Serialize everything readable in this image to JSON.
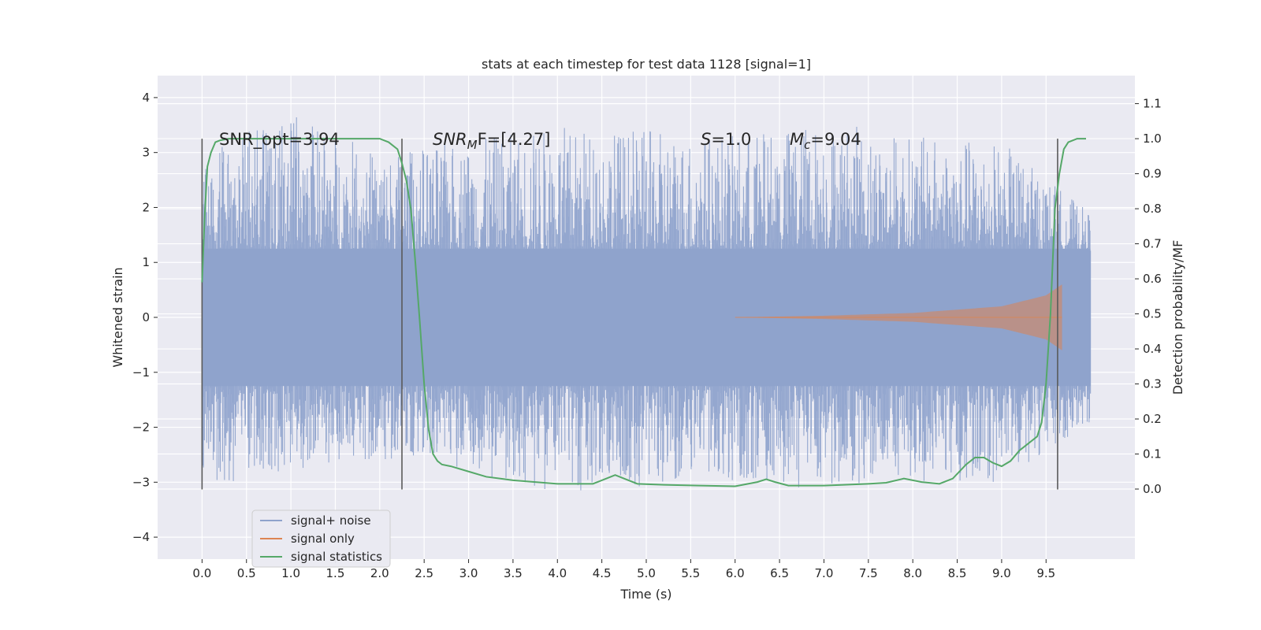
{
  "chart_data": {
    "type": "line",
    "title": "stats at each timestep for test data 1128 [signal=1]",
    "xlabel": "Time (s)",
    "ylabel": "Whitened strain",
    "y2label": "Detection probability/MF",
    "xlim": [
      -0.5,
      10.5
    ],
    "ylim": [
      -4.4,
      4.4
    ],
    "y2lim": [
      -0.2,
      1.18
    ],
    "xticks": [
      0.0,
      0.5,
      1.0,
      1.5,
      2.0,
      2.5,
      3.0,
      3.5,
      4.0,
      4.5,
      5.0,
      5.5,
      6.0,
      6.5,
      7.0,
      7.5,
      8.0,
      8.5,
      9.0,
      9.5
    ],
    "xtick_labels": [
      "0.0",
      "0.5",
      "1.0",
      "1.5",
      "2.0",
      "2.5",
      "3.0",
      "3.5",
      "4.0",
      "4.5",
      "5.0",
      "5.5",
      "6.0",
      "6.5",
      "7.0",
      "7.5",
      "8.0",
      "8.5",
      "9.0",
      "9.5"
    ],
    "yticks": [
      4,
      3,
      2,
      1,
      0,
      -1,
      -2,
      -3,
      -4
    ],
    "ytick_labels": [
      "4",
      "3",
      "2",
      "1",
      "0",
      "−1",
      "−2",
      "−3",
      "−4"
    ],
    "y2ticks": [
      1.1,
      1.0,
      0.9,
      0.8,
      0.7,
      0.6,
      0.5,
      0.4,
      0.3,
      0.2,
      0.1,
      0.0
    ],
    "y2tick_labels": [
      "1.1",
      "1.0",
      "0.9",
      "0.8",
      "0.7",
      "0.6",
      "0.5",
      "0.4",
      "0.3",
      "0.2",
      "0.1",
      "0.0"
    ],
    "grid": true,
    "legend_position": "lower-left",
    "annotations": {
      "snr_opt": "SNR_opt=3.94",
      "snr_mf_main": "SNR",
      "snr_mf_sub": "M",
      "snr_mf_rest": "F=[4.27]",
      "s_var": "S",
      "s_rest": "=1.0",
      "mc_var": "M",
      "mc_sub": "c",
      "mc_rest": "=9.04"
    },
    "vlines_x": [
      0.0,
      2.25,
      9.63
    ],
    "series": [
      {
        "name": "signal+ noise",
        "color": "#8fa3cc",
        "x_range": [
          0.0,
          10.0
        ],
        "envelope": [
          {
            "x": 0.0,
            "lo": -3.1,
            "hi": 3.1
          },
          {
            "x": 1.0,
            "lo": -2.8,
            "hi": 3.7
          },
          {
            "x": 2.0,
            "lo": -2.6,
            "hi": 3.0
          },
          {
            "x": 3.0,
            "lo": -2.9,
            "hi": 3.2
          },
          {
            "x": 4.0,
            "lo": -3.2,
            "hi": 3.5
          },
          {
            "x": 5.0,
            "lo": -3.1,
            "hi": 3.4
          },
          {
            "x": 6.0,
            "lo": -3.0,
            "hi": 3.3
          },
          {
            "x": 7.0,
            "lo": -3.2,
            "hi": 3.6
          },
          {
            "x": 8.0,
            "lo": -3.0,
            "hi": 3.3
          },
          {
            "x": 9.0,
            "lo": -3.0,
            "hi": 3.2
          },
          {
            "x": 10.0,
            "lo": -1.9,
            "hi": 1.9
          }
        ]
      },
      {
        "name": "signal only",
        "color": "#dd8452",
        "x_range": [
          6.0,
          9.68
        ],
        "amplitude": [
          {
            "x": 6.0,
            "a": 0.0
          },
          {
            "x": 7.0,
            "a": 0.03
          },
          {
            "x": 8.0,
            "a": 0.08
          },
          {
            "x": 9.0,
            "a": 0.2
          },
          {
            "x": 9.5,
            "a": 0.4
          },
          {
            "x": 9.68,
            "a": 0.6
          }
        ]
      },
      {
        "name": "signal statistics",
        "color": "#55a868",
        "x": [
          0.0,
          0.03,
          0.06,
          0.1,
          0.15,
          0.2,
          0.3,
          0.5,
          1.0,
          1.5,
          2.0,
          2.1,
          2.2,
          2.25,
          2.3,
          2.35,
          2.4,
          2.45,
          2.5,
          2.55,
          2.6,
          2.65,
          2.7,
          2.8,
          3.0,
          3.2,
          3.5,
          4.0,
          4.4,
          4.55,
          4.65,
          4.75,
          4.9,
          5.2,
          5.6,
          6.0,
          6.25,
          6.35,
          6.45,
          6.6,
          7.0,
          7.5,
          7.7,
          7.9,
          8.1,
          8.3,
          8.45,
          8.6,
          8.7,
          8.8,
          8.9,
          9.0,
          9.1,
          9.2,
          9.3,
          9.4,
          9.45,
          9.5,
          9.55,
          9.6,
          9.65,
          9.7,
          9.75,
          9.8,
          9.85,
          9.9,
          9.95
        ],
        "values": [
          0.59,
          0.78,
          0.92,
          0.96,
          0.99,
          0.995,
          1.0,
          1.0,
          1.0,
          1.0,
          1.0,
          0.99,
          0.97,
          0.93,
          0.88,
          0.8,
          0.65,
          0.48,
          0.3,
          0.17,
          0.1,
          0.08,
          0.07,
          0.065,
          0.05,
          0.035,
          0.025,
          0.015,
          0.015,
          0.03,
          0.04,
          0.03,
          0.015,
          0.012,
          0.01,
          0.008,
          0.02,
          0.028,
          0.02,
          0.01,
          0.01,
          0.015,
          0.018,
          0.03,
          0.02,
          0.015,
          0.03,
          0.07,
          0.09,
          0.09,
          0.075,
          0.065,
          0.08,
          0.11,
          0.13,
          0.15,
          0.19,
          0.3,
          0.5,
          0.8,
          0.9,
          0.97,
          0.99,
          0.995,
          1.0,
          1.0,
          1.0
        ]
      }
    ]
  }
}
